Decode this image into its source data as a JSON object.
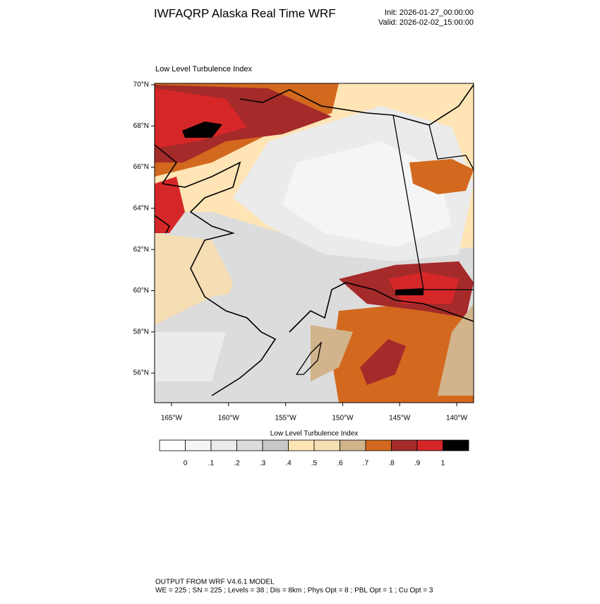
{
  "header": {
    "title": "IWFAQRP Alaska Real Time WRF",
    "init": "Init: 2026-01-27_00:00:00",
    "valid": "Valid: 2026-02-02_15:00:00"
  },
  "map": {
    "title": "Low Level Turbulence Index",
    "lat_labels": [
      "70°N",
      "68°N",
      "66°N",
      "64°N",
      "62°N",
      "60°N",
      "58°N",
      "56°N"
    ],
    "lon_labels": [
      "165°W",
      "160°W",
      "155°W",
      "150°W",
      "145°W",
      "140°W"
    ]
  },
  "colorbar": {
    "title": "Low Level Turbulence Index",
    "labels": [
      "0",
      ".1",
      ".2",
      ".3",
      ".4",
      ".5",
      ".6",
      ".7",
      ".8",
      ".9",
      "1"
    ],
    "colors": [
      "#ffffff",
      "#f5f5f5",
      "#ebebeb",
      "#dcdcdc",
      "#c8c8c8",
      "#ffe4b5",
      "#f5deb3",
      "#d2b48c",
      "#d2691e",
      "#a52a2a",
      "#d62728",
      "#000000"
    ]
  },
  "footer": {
    "lines": [
      "OUTPUT FROM WRF V4.6.1 MODEL",
      "WE = 225 ; SN = 225 ; Levels = 38 ; Dis = 8km ; Phys Opt = 8 ; PBL Opt = 1 ; Cu Opt = 3"
    ]
  }
}
